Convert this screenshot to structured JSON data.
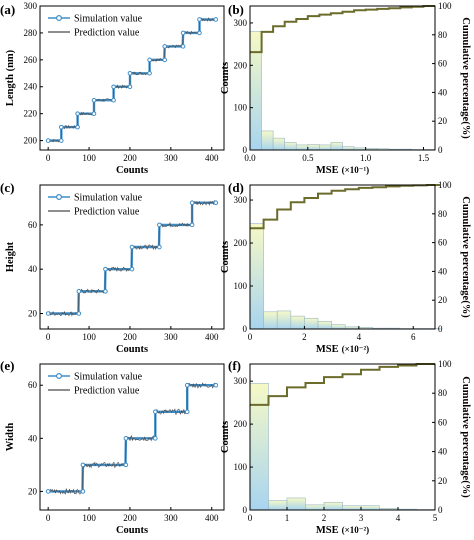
{
  "chart_data": [
    {
      "id": "a",
      "type": "line",
      "panel_label": "(a)",
      "xlabel": "Counts",
      "ylabel": "Length (nm)",
      "xlim": [
        -20,
        430
      ],
      "ylim": [
        193,
        300
      ],
      "xticks": [
        0,
        100,
        200,
        300,
        400
      ],
      "yticks": [
        200,
        220,
        240,
        260,
        280,
        300
      ],
      "legend": {
        "position": "top-left",
        "entries": [
          "Simulation value",
          "Prediction value"
        ]
      },
      "steps": [
        {
          "x": [
            0,
            32
          ],
          "y": 200
        },
        {
          "x": [
            32,
            72
          ],
          "y": 210
        },
        {
          "x": [
            72,
            112
          ],
          "y": 220
        },
        {
          "x": [
            112,
            160
          ],
          "y": 230
        },
        {
          "x": [
            160,
            200
          ],
          "y": 240
        },
        {
          "x": [
            200,
            248
          ],
          "y": 250
        },
        {
          "x": [
            248,
            285
          ],
          "y": 260
        },
        {
          "x": [
            285,
            330
          ],
          "y": 270
        },
        {
          "x": [
            330,
            370
          ],
          "y": 280
        },
        {
          "x": [
            370,
            410
          ],
          "y": 290
        }
      ],
      "noise_amplitude": 1.2
    },
    {
      "id": "b",
      "type": "bar",
      "panel_label": "(b)",
      "xlabel": "MSE",
      "xlabel_scale": "(×10⁻¹)",
      "ylabel": "Counts",
      "y2label": "Cumulative percentage(%)",
      "xlim": [
        0,
        1.6
      ],
      "ylim": [
        0,
        340
      ],
      "y2lim": [
        0,
        100
      ],
      "xticks": [
        "0.0",
        "0.5",
        "1.0",
        "1.5"
      ],
      "xtick_values": [
        0,
        0.5,
        1.0,
        1.5
      ],
      "yticks": [
        0,
        100,
        200,
        300
      ],
      "y2ticks": [
        0,
        20,
        40,
        60,
        80,
        100
      ],
      "bin_width": 0.1,
      "bins": [
        0,
        0.1,
        0.2,
        0.3,
        0.4,
        0.5,
        0.6,
        0.7,
        0.8,
        0.9,
        1.0,
        1.1,
        1.2,
        1.3,
        1.4,
        1.5
      ],
      "values": [
        280,
        45,
        28,
        18,
        12,
        13,
        12,
        18,
        8,
        5,
        4,
        3,
        2,
        2,
        1,
        1
      ],
      "cumulative": [
        68,
        82,
        86,
        89,
        91,
        93,
        94,
        95,
        96,
        97,
        97.5,
        98,
        98.5,
        99,
        99.5,
        100
      ]
    },
    {
      "id": "c",
      "type": "line",
      "panel_label": "(c)",
      "xlabel": "Counts",
      "ylabel": "Height",
      "xlim": [
        -20,
        430
      ],
      "ylim": [
        13,
        78
      ],
      "xticks": [
        0,
        100,
        200,
        300,
        400
      ],
      "yticks": [
        20,
        40,
        60
      ],
      "legend": {
        "position": "top-left",
        "entries": [
          "Simulation value",
          "Prediction value"
        ]
      },
      "steps": [
        {
          "x": [
            0,
            75
          ],
          "y": 20
        },
        {
          "x": [
            75,
            140
          ],
          "y": 30
        },
        {
          "x": [
            140,
            205
          ],
          "y": 40
        },
        {
          "x": [
            205,
            272
          ],
          "y": 50
        },
        {
          "x": [
            272,
            352
          ],
          "y": 60
        },
        {
          "x": [
            352,
            410
          ],
          "y": 70
        }
      ],
      "noise_amplitude": 1.0
    },
    {
      "id": "d",
      "type": "bar",
      "panel_label": "(d)",
      "xlabel": "MSE",
      "xlabel_scale": "(×10⁻²)",
      "ylabel": "Counts",
      "y2label": "Cumulative percentage(%)",
      "xlim": [
        0,
        6.8
      ],
      "ylim": [
        0,
        335
      ],
      "y2lim": [
        0,
        100
      ],
      "xticks": [
        "0",
        "2",
        "4",
        "6"
      ],
      "xtick_values": [
        0,
        2,
        4,
        6
      ],
      "yticks": [
        0,
        100,
        200,
        300
      ],
      "y2ticks": [
        0,
        20,
        40,
        60,
        80,
        100
      ],
      "bin_width": 0.5,
      "bins": [
        0,
        0.5,
        1.0,
        1.5,
        2.0,
        2.5,
        3.0,
        3.5,
        4.0,
        4.5,
        5.0,
        5.5,
        6.0,
        6.5
      ],
      "values": [
        245,
        40,
        42,
        30,
        25,
        18,
        10,
        5,
        4,
        2,
        2,
        1,
        1,
        1
      ],
      "cumulative": [
        70,
        76,
        83,
        88,
        91,
        94,
        96,
        97,
        98,
        98.5,
        99,
        99.5,
        99.7,
        100
      ]
    },
    {
      "id": "e",
      "type": "line",
      "panel_label": "(e)",
      "xlabel": "Counts",
      "ylabel": "Width",
      "xlim": [
        -20,
        430
      ],
      "ylim": [
        13,
        68
      ],
      "xticks": [
        0,
        100,
        200,
        300,
        400
      ],
      "yticks": [
        20,
        40,
        60
      ],
      "legend": {
        "position": "top-left",
        "entries": [
          "Simulation value",
          "Prediction value"
        ]
      },
      "steps": [
        {
          "x": [
            0,
            85
          ],
          "y": 20
        },
        {
          "x": [
            85,
            190
          ],
          "y": 30
        },
        {
          "x": [
            190,
            262
          ],
          "y": 40
        },
        {
          "x": [
            262,
            340
          ],
          "y": 50
        },
        {
          "x": [
            340,
            410
          ],
          "y": 60
        }
      ],
      "noise_amplitude": 1.0
    },
    {
      "id": "f",
      "type": "bar",
      "panel_label": "(f)",
      "xlabel": "MSE",
      "xlabel_scale": "(×10⁻²)",
      "ylabel": "Counts",
      "y2label": "Cumulative percentage(%)",
      "xlim": [
        0,
        5
      ],
      "ylim": [
        0,
        340
      ],
      "y2lim": [
        0,
        100
      ],
      "xticks": [
        "0",
        "1",
        "2",
        "3",
        "4",
        "5"
      ],
      "xtick_values": [
        0,
        1,
        2,
        3,
        4,
        5
      ],
      "yticks": [
        0,
        100,
        200,
        300
      ],
      "y2ticks": [
        0,
        20,
        40,
        60,
        80,
        100
      ],
      "bin_width": 0.5,
      "bins": [
        0,
        0.5,
        1.0,
        1.5,
        2.0,
        2.5,
        3.0,
        3.5,
        4.0,
        4.5
      ],
      "values": [
        295,
        22,
        28,
        12,
        18,
        10,
        10,
        4,
        2,
        1
      ],
      "cumulative": [
        72,
        78,
        84,
        87,
        91,
        93,
        96,
        98,
        99,
        100
      ]
    }
  ],
  "colors": {
    "simulation": "#3f8ec9",
    "prediction": "#4a4a4a",
    "cumulative": "#6b6b2c",
    "bar_top": "#f6f9c6",
    "bar_bottom": "#a8d4ef"
  }
}
